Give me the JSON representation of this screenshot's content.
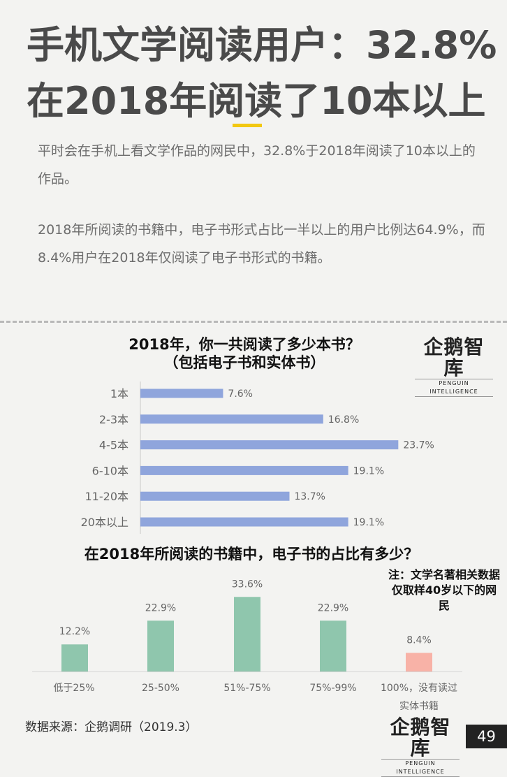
{
  "header": {
    "title_line1": "手机文学阅读用户：32.8%",
    "title_line2": "在2018年阅读了10本以上"
  },
  "paragraphs": {
    "p1": "平时会在手机上看文学作品的网民中，32.8%于2018年阅读了10本以上的作品。",
    "p2": "2018年所阅读的书籍中，电子书形式占比一半以上的用户比例达64.9%，而8.4%用户在2018年仅阅读了电子书形式的书籍。"
  },
  "logo": {
    "main": "企鹅智库",
    "sub": "PENGUIN INTELLIGENCE"
  },
  "note": "注：文学名著相关数据仅取样40岁以下的网民",
  "source": "数据来源：企鹅调研（2019.3）",
  "page_number": "49",
  "chart_data": [
    {
      "type": "bar",
      "orientation": "horizontal",
      "title_line1": "2018年，你一共阅读了多少本书？",
      "title_line2": "（包括电子书和实体书）",
      "categories": [
        "1本",
        "2-3本",
        "4-5本",
        "6-10本",
        "11-20本",
        "20本以上"
      ],
      "values": [
        7.6,
        16.8,
        23.7,
        19.1,
        13.7,
        19.1
      ],
      "value_labels": [
        "7.6%",
        "16.8%",
        "23.7%",
        "19.1%",
        "13.7%",
        "19.1%"
      ],
      "unit": "%",
      "xlim": [
        0,
        24
      ],
      "color": "#8fa5dc",
      "grid": false
    },
    {
      "type": "bar",
      "orientation": "vertical",
      "title": "在2018年所阅读的书籍中，电子书的占比有多少？",
      "categories": [
        "低于25%",
        "25-50%",
        "51%-75%",
        "75%-99%",
        "100%，没有读过实体书籍"
      ],
      "category_lines": [
        [
          "低于25%"
        ],
        [
          "25-50%"
        ],
        [
          "51%-75%"
        ],
        [
          "75%-99%"
        ],
        [
          "100%，没有读过",
          "实体书籍"
        ]
      ],
      "values": [
        12.2,
        22.9,
        33.6,
        22.9,
        8.4
      ],
      "value_labels": [
        "12.2%",
        "22.9%",
        "33.6%",
        "22.9%",
        "8.4%"
      ],
      "unit": "%",
      "ylim": [
        0,
        34
      ],
      "colors": [
        "#8fc6ad",
        "#8fc6ad",
        "#8fc6ad",
        "#8fc6ad",
        "#f8b2a7"
      ],
      "grid": false
    }
  ]
}
